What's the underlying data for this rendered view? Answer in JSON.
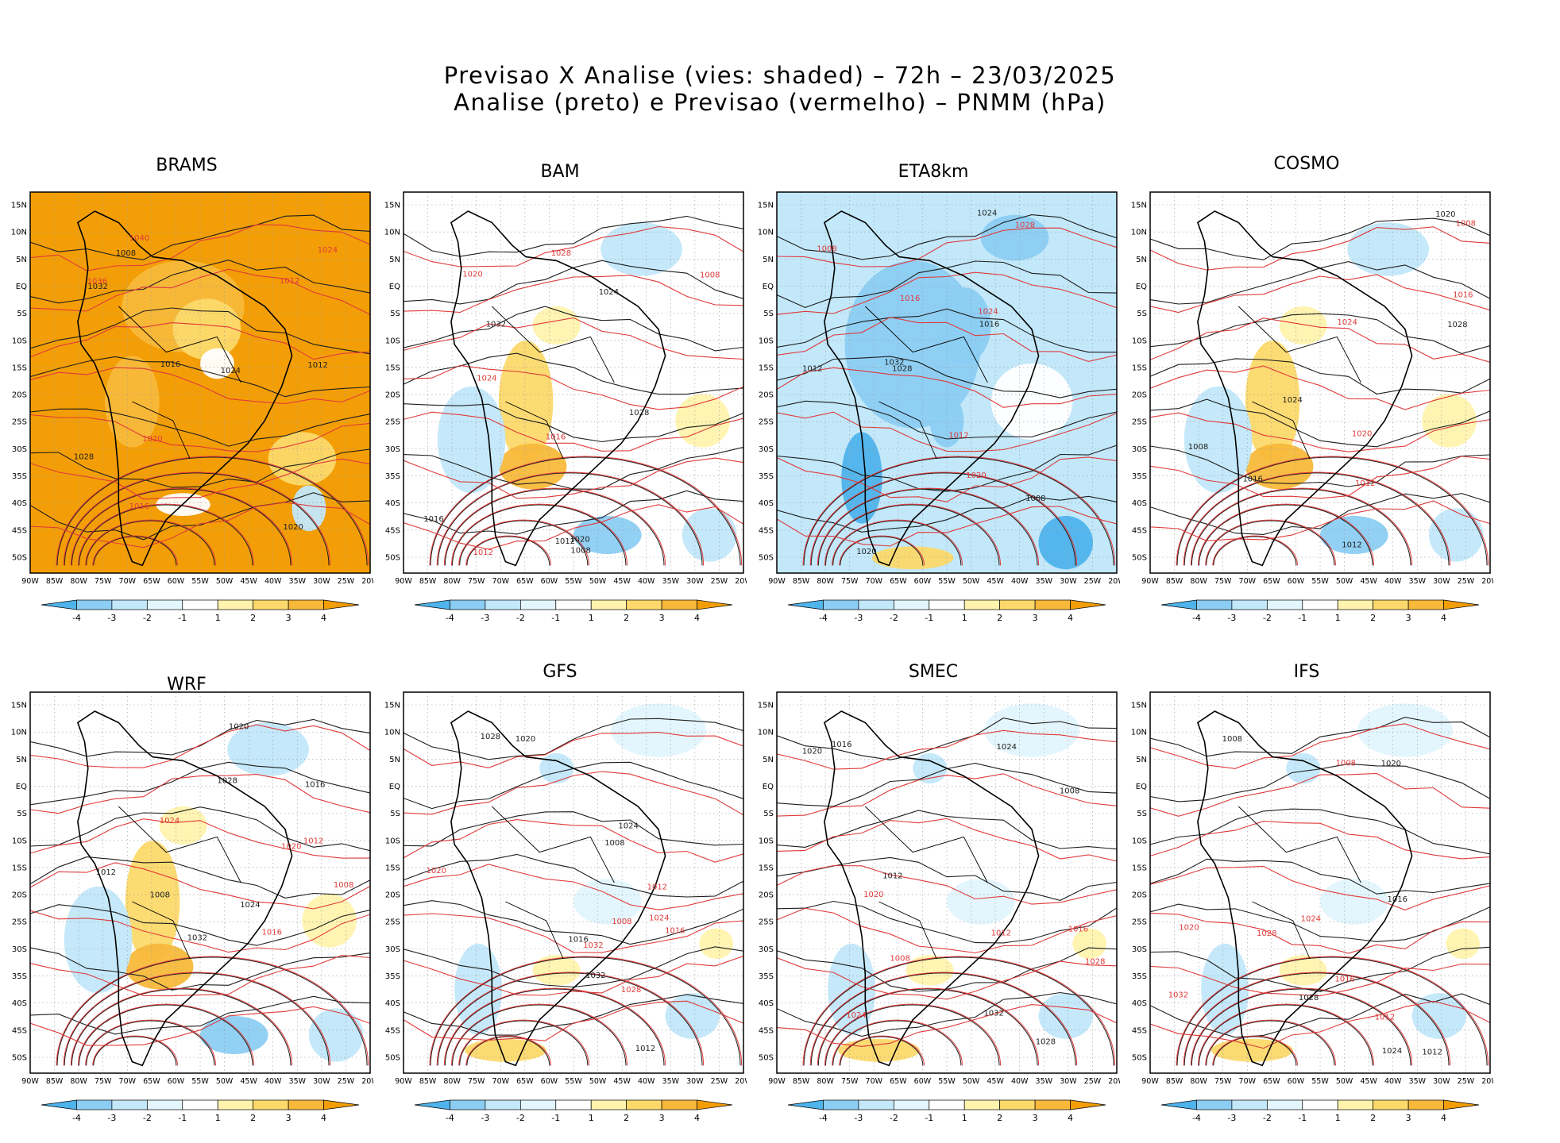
{
  "header": {
    "title_line1": "Previsao X Analise (vies: shaded) – 72h – 23/03/2025",
    "title_line2": "Analise (preto) e Previsao (vermelho) – PNMM (hPa)"
  },
  "axes": {
    "lat_labels": [
      "15N",
      "10N",
      "5N",
      "EQ",
      "5S",
      "10S",
      "15S",
      "20S",
      "25S",
      "30S",
      "35S",
      "40S",
      "45S",
      "50S"
    ],
    "lon_labels": [
      "90W",
      "85W",
      "80W",
      "75W",
      "70W",
      "65W",
      "60W",
      "55W",
      "50W",
      "45W",
      "40W",
      "35W",
      "30W",
      "25W",
      "20W"
    ]
  },
  "colorbar": {
    "labels": [
      "-4",
      "-3",
      "-2",
      "-1",
      "1",
      "2",
      "3",
      "4"
    ],
    "colors": [
      "#4fb3ec",
      "#8ccdf3",
      "#c2e8fa",
      "#e3f6fd",
      "#ffffff",
      "#fff3ad",
      "#fcd96a",
      "#f8b93a",
      "#f39e06"
    ]
  },
  "isobar_colors": {
    "analysis": "#1e1e1e",
    "forecast": "#e03a3a"
  },
  "panels": [
    {
      "name": "BRAMS",
      "bias": "warm",
      "labels_black": [
        "1008",
        "1012",
        "1016",
        "1020",
        "1028",
        "1032",
        "1024"
      ],
      "labels_red": [
        "1016",
        "1020",
        "1024",
        "1012",
        "1040",
        "1036"
      ]
    },
    {
      "name": "BAM",
      "bias": "mixed",
      "labels_black": [
        "1008",
        "1012",
        "1016",
        "1020",
        "1028",
        "1032",
        "1024"
      ],
      "labels_red": [
        "1012",
        "1016",
        "1020",
        "1024",
        "1008",
        "1028"
      ]
    },
    {
      "name": "ETA8km",
      "bias": "cold",
      "labels_black": [
        "1008",
        "1012",
        "1016",
        "1020",
        "1028",
        "1032",
        "1024"
      ],
      "labels_red": [
        "1008",
        "1012",
        "1016",
        "1020",
        "1024",
        "1028"
      ]
    },
    {
      "name": "COSMO",
      "bias": "mixed",
      "labels_black": [
        "1008",
        "1012",
        "1016",
        "1020",
        "1028",
        "1024"
      ],
      "labels_red": [
        "1012",
        "1016",
        "1020",
        "1024",
        "1008"
      ]
    },
    {
      "name": "WRF",
      "bias": "mixed",
      "labels_black": [
        "1008",
        "1012",
        "1016",
        "1020",
        "1028",
        "1032",
        "1024"
      ],
      "labels_red": [
        "1012",
        "1016",
        "1020",
        "1024",
        "1008"
      ]
    },
    {
      "name": "GFS",
      "bias": "light",
      "labels_black": [
        "1008",
        "1012",
        "1016",
        "1020",
        "1028",
        "1032",
        "1024"
      ],
      "labels_red": [
        "1012",
        "1016",
        "1020",
        "1024",
        "1008",
        "1028",
        "1032"
      ]
    },
    {
      "name": "SMEC",
      "bias": "light",
      "labels_black": [
        "1008",
        "1012",
        "1016",
        "1020",
        "1028",
        "1032",
        "1024"
      ],
      "labels_red": [
        "1012",
        "1016",
        "1020",
        "1024",
        "1008",
        "1028"
      ]
    },
    {
      "name": "IFS",
      "bias": "light",
      "labels_black": [
        "1008",
        "1012",
        "1016",
        "1020",
        "1028",
        "1024"
      ],
      "labels_red": [
        "1012",
        "1016",
        "1020",
        "1024",
        "1008",
        "1032",
        "1028"
      ]
    }
  ]
}
